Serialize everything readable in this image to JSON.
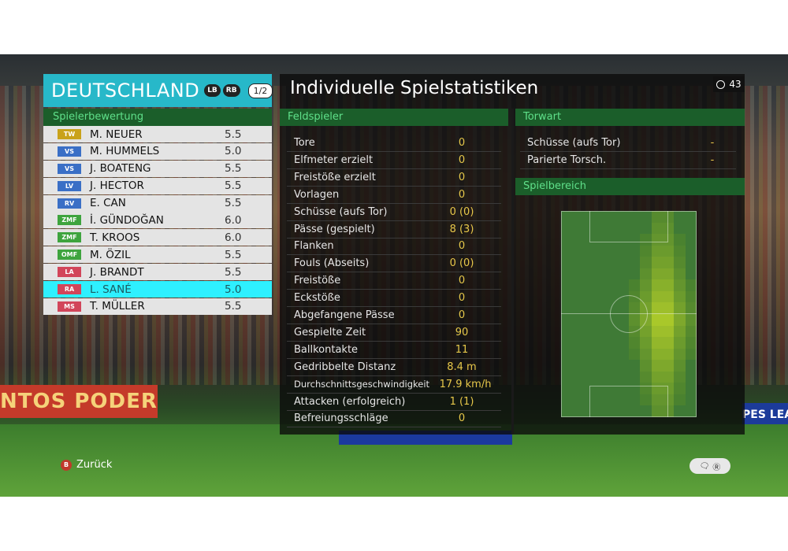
{
  "team": {
    "name": "DEUTSCHLAND",
    "lb": "LB",
    "rb": "RB",
    "page": "1/2"
  },
  "rating_header": "Spielerbewertung",
  "players": [
    {
      "pos": "TW",
      "name": "M. NEUER",
      "rating": "5.5",
      "color": "#c9a21a"
    },
    {
      "pos": "VS",
      "name": "M. HUMMELS",
      "rating": "5.0",
      "color": "#3a6fc6"
    },
    {
      "pos": "VS",
      "name": "J. BOATENG",
      "rating": "5.5",
      "color": "#3a6fc6"
    },
    {
      "pos": "LV",
      "name": "J. HECTOR",
      "rating": "5.5",
      "color": "#3a6fc6"
    },
    {
      "pos": "RV",
      "name": "E. CAN",
      "rating": "5.5",
      "color": "#3a6fc6"
    },
    {
      "pos": "ZMF",
      "name": "İ. GÜNDOĞAN",
      "rating": "6.0",
      "color": "#3ea43e"
    },
    {
      "pos": "ZMF",
      "name": "T. KROOS",
      "rating": "6.0",
      "color": "#3ea43e"
    },
    {
      "pos": "OMF",
      "name": "M. ÖZIL",
      "rating": "5.5",
      "color": "#3ea43e"
    },
    {
      "pos": "LA",
      "name": "J. BRANDT",
      "rating": "5.5",
      "color": "#d2455a"
    },
    {
      "pos": "RA",
      "name": "L. SANÉ",
      "rating": "5.0",
      "color": "#d2455a",
      "selected": true
    },
    {
      "pos": "MS",
      "name": "T. MÜLLER",
      "rating": "5.5",
      "color": "#d2455a"
    }
  ],
  "title": "Individuelle Spielstatistiken",
  "timer": "43",
  "field_header": "Feldspieler",
  "keeper_header": "Torwart",
  "area_header": "Spielbereich",
  "field_stats": [
    {
      "label": "Tore",
      "value": "0"
    },
    {
      "label": "Elfmeter erzielt",
      "value": "0"
    },
    {
      "label": "Freistöße erzielt",
      "value": "0"
    },
    {
      "label": "Vorlagen",
      "value": "0"
    },
    {
      "label": "Schüsse (aufs Tor)",
      "value": "0 (0)"
    },
    {
      "label": "Pässe (gespielt)",
      "value": "8 (3)"
    },
    {
      "label": "Flanken",
      "value": "0"
    },
    {
      "label": "Fouls (Abseits)",
      "value": "0 (0)"
    },
    {
      "label": "Freistöße",
      "value": "0"
    },
    {
      "label": "Eckstöße",
      "value": "0"
    },
    {
      "label": "Abgefangene Pässe",
      "value": "0"
    },
    {
      "label": "Gespielte Zeit",
      "value": "90"
    },
    {
      "label": "Ballkontakte",
      "value": "11"
    },
    {
      "label": "Gedribbelte Distanz",
      "value": "8.4 m"
    },
    {
      "label": "Durchschnittsgeschwindigkeit",
      "value": "17.9 km/h"
    },
    {
      "label": "Attacken (erfolgreich)",
      "value": "1 (1)"
    },
    {
      "label": "Befreiungsschläge",
      "value": "0"
    }
  ],
  "keeper_stats": [
    {
      "label": "Schüsse (aufs Tor)",
      "value": "-"
    },
    {
      "label": "Parierte Torsch.",
      "value": "-"
    }
  ],
  "footer": {
    "back_button": "B",
    "back_label": "Zurück",
    "ctrl_icons": "chat-icon r3-icon"
  },
  "scene": {
    "banner_left": "NTOS   PODERES",
    "banner_right": "PES LEAGUE"
  }
}
